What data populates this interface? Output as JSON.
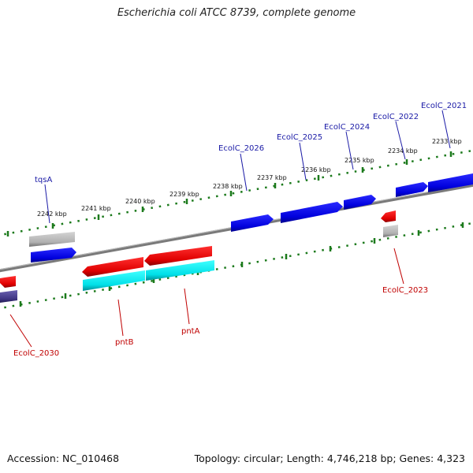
{
  "title": "Escherichia coli ATCC 8739, complete genome",
  "footer": {
    "accession": "Accession: NC_010468",
    "info": "Topology: circular; Length: 4,746,218 bp; Genes: 4,323"
  },
  "scale_labels": [
    "2242 kbp",
    "2241 kbp",
    "2240 kbp",
    "2239 kbp",
    "2238 kbp",
    "2237 kbp",
    "2236 kbp",
    "2235 kbp",
    "2234 kbp",
    "2233 kbp"
  ],
  "genes_top": [
    "tqsA",
    "EcolC_2026",
    "EcolC_2025",
    "EcolC_2024",
    "EcolC_2022",
    "EcolC_2021"
  ],
  "genes_bottom": [
    "EcolC_2030",
    "pntB",
    "pntA",
    "EcolC_2023"
  ],
  "colors": {
    "forward_cds": "#0000ee",
    "reverse_cds": "#ee0000",
    "rna": "#00e5ee",
    "pseudo": "#aaaaaa",
    "other": "#4b3f8a",
    "backbone": "#777777",
    "ticks": "#1c7a1c",
    "label_blue": "#1a1aa6",
    "label_red": "#c00000"
  }
}
